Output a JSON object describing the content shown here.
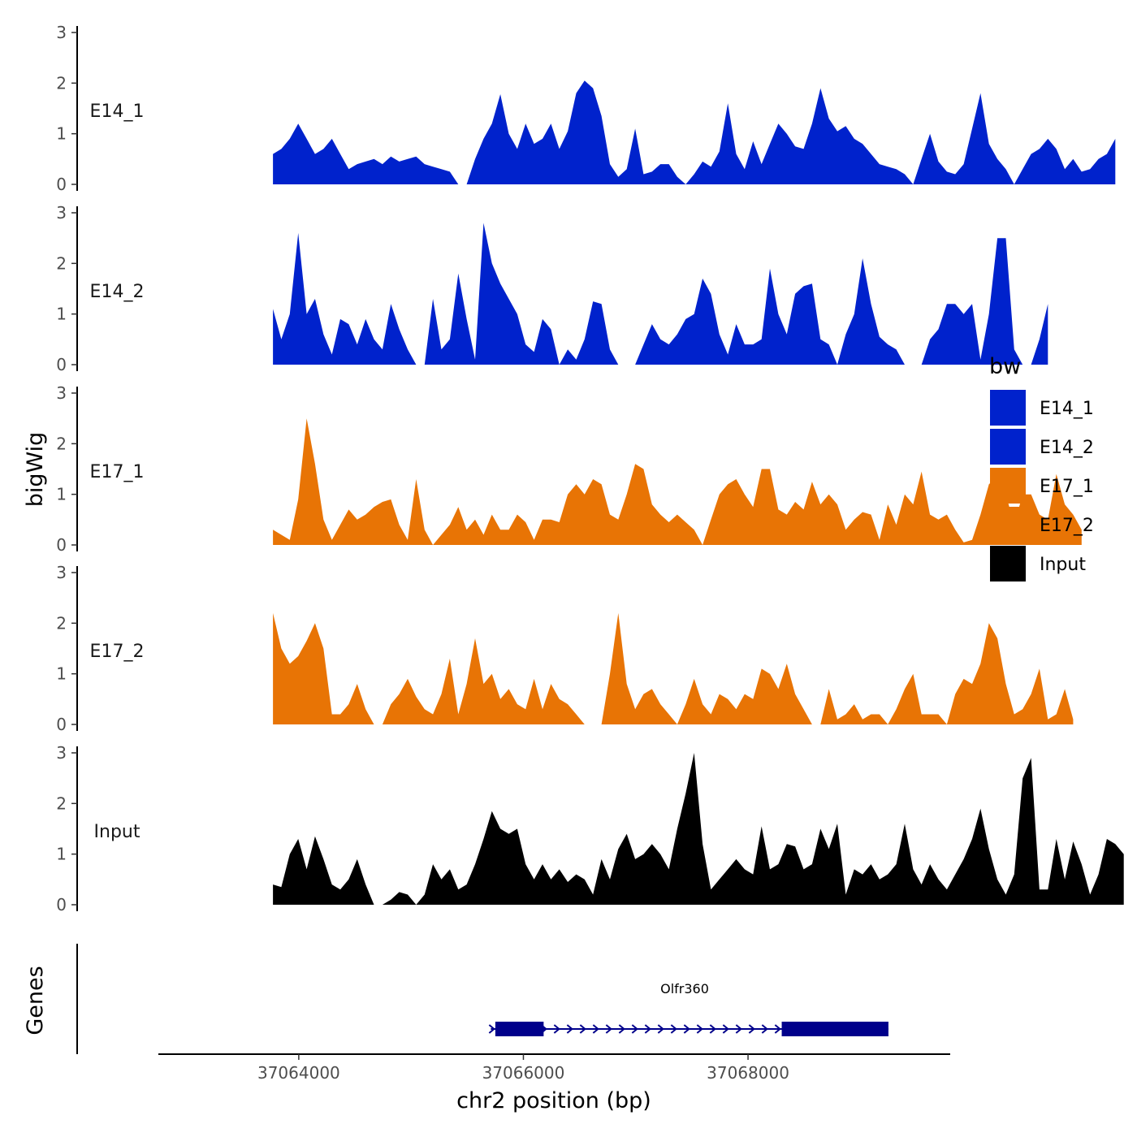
{
  "chart_data": {
    "type": "area",
    "ylabel": "bigWig",
    "genes_label": "Genes",
    "xlabel": "chr2 position (bp)",
    "xlim": [
      37062750,
      37069800
    ],
    "ylim": [
      0,
      3
    ],
    "yticks": [
      "0",
      "1",
      "2",
      "3"
    ],
    "xticks": [
      {
        "value": 37064000,
        "label": "37064000"
      },
      {
        "value": 37066000,
        "label": "37066000"
      },
      {
        "value": 37068000,
        "label": "37068000"
      }
    ],
    "legend": {
      "title": "bw",
      "position": "right",
      "entries": [
        "E14_1",
        "E14_2",
        "E17_1",
        "E17_2",
        "Input"
      ]
    },
    "colors": {
      "E14_1": "#0022cc",
      "E14_2": "#0022cc",
      "E17_1": "#e87405",
      "E17_2": "#e87405",
      "Input": "#000000",
      "gene": "#00008b"
    },
    "x_start": 37063770,
    "x_step": 75,
    "series": [
      {
        "name": "E14_1",
        "values": [
          0.6,
          0.7,
          0.9,
          1.2,
          0.9,
          0.6,
          0.7,
          0.9,
          0.6,
          0.3,
          0.4,
          0.45,
          0.5,
          0.4,
          0.55,
          0.45,
          0.5,
          0.55,
          0.4,
          0.35,
          0.3,
          0.25,
          0,
          0,
          0.5,
          0.9,
          1.2,
          1.78,
          1.0,
          0.7,
          1.2,
          0.8,
          0.9,
          1.2,
          0.7,
          1.05,
          1.8,
          2.05,
          1.9,
          1.35,
          0.4,
          0.15,
          0.3,
          1.1,
          0.2,
          0.25,
          0.4,
          0.4,
          0.15,
          0,
          0.2,
          0.45,
          0.35,
          0.65,
          1.6,
          0.6,
          0.3,
          0.85,
          0.4,
          0.8,
          1.2,
          1.0,
          0.75,
          0.7,
          1.2,
          1.9,
          1.3,
          1.05,
          1.15,
          0.9,
          0.8,
          0.6,
          0.4,
          0.35,
          0.3,
          0.2,
          0,
          0.5,
          1.0,
          0.45,
          0.25,
          0.2,
          0.4,
          1.1,
          1.8,
          0.8,
          0.5,
          0.3,
          0,
          0.3,
          0.6,
          0.7,
          0.9,
          0.7,
          0.3,
          0.5,
          0.25,
          0.3,
          0.5,
          0.6,
          0.9
        ]
      },
      {
        "name": "E14_2",
        "values": [
          1.1,
          0.5,
          1.0,
          2.6,
          1.0,
          1.3,
          0.6,
          0.2,
          0.9,
          0.8,
          0.4,
          0.9,
          0.5,
          0.3,
          1.2,
          0.7,
          0.3,
          0,
          0,
          1.3,
          0.3,
          0.5,
          1.8,
          0.9,
          0.1,
          2.8,
          2.0,
          1.6,
          1.3,
          1.0,
          0.4,
          0.25,
          0.9,
          0.7,
          0,
          0.3,
          0.1,
          0.5,
          1.25,
          1.2,
          0.3,
          0,
          0,
          0,
          0.4,
          0.8,
          0.5,
          0.4,
          0.6,
          0.9,
          1.0,
          1.7,
          1.4,
          0.6,
          0.2,
          0.8,
          0.4,
          0.4,
          0.5,
          1.9,
          1.0,
          0.6,
          1.4,
          1.55,
          1.6,
          0.5,
          0.4,
          0.0,
          0.6,
          1.0,
          2.1,
          1.2,
          0.55,
          0.4,
          0.3,
          0,
          0,
          0,
          0.5,
          0.7,
          1.2,
          1.2,
          1.0,
          1.2,
          0.1,
          1.0,
          2.5,
          2.5,
          0.3,
          0,
          0,
          0.5,
          1.2
        ]
      },
      {
        "name": "E17_1",
        "values": [
          0.3,
          0.2,
          0.1,
          0.9,
          2.5,
          1.6,
          0.5,
          0.1,
          0.4,
          0.7,
          0.5,
          0.6,
          0.75,
          0.85,
          0.9,
          0.4,
          0.1,
          1.3,
          0.3,
          0,
          0.2,
          0.4,
          0.75,
          0.3,
          0.5,
          0.2,
          0.6,
          0.3,
          0.3,
          0.6,
          0.45,
          0.1,
          0.5,
          0.5,
          0.45,
          1.0,
          1.2,
          1.0,
          1.3,
          1.2,
          0.6,
          0.5,
          1.0,
          1.6,
          1.5,
          0.8,
          0.6,
          0.45,
          0.6,
          0.45,
          0.3,
          0,
          0.5,
          1.0,
          1.2,
          1.3,
          1.0,
          0.75,
          1.5,
          1.5,
          0.7,
          0.6,
          0.85,
          0.7,
          1.25,
          0.8,
          1.0,
          0.8,
          0.3,
          0.5,
          0.65,
          0.6,
          0.1,
          0.8,
          0.4,
          1.0,
          0.8,
          1.45,
          0.6,
          0.5,
          0.6,
          0.3,
          0.05,
          0.1,
          0.6,
          1.2,
          1.35,
          1.0,
          0.4,
          1.0,
          1.0,
          0.6,
          0.5,
          1.4,
          0.8,
          0.6,
          0.3
        ]
      },
      {
        "name": "E17_2",
        "values": [
          2.2,
          1.5,
          1.2,
          1.35,
          1.65,
          2.0,
          1.5,
          0.2,
          0.2,
          0.4,
          0.8,
          0.3,
          0,
          0,
          0.4,
          0.6,
          0.9,
          0.55,
          0.3,
          0.2,
          0.6,
          1.3,
          0.2,
          0.8,
          1.7,
          0.8,
          1.0,
          0.5,
          0.7,
          0.4,
          0.3,
          0.9,
          0.3,
          0.8,
          0.5,
          0.4,
          0.2,
          0,
          0,
          0,
          1.0,
          2.2,
          0.8,
          0.3,
          0.6,
          0.7,
          0.4,
          0.2,
          0,
          0.4,
          0.9,
          0.4,
          0.2,
          0.6,
          0.5,
          0.3,
          0.6,
          0.5,
          1.1,
          1.0,
          0.7,
          1.2,
          0.6,
          0.3,
          0,
          0,
          0.7,
          0.1,
          0.2,
          0.4,
          0.1,
          0.2,
          0.2,
          0,
          0.3,
          0.7,
          1.0,
          0.2,
          0.2,
          0.2,
          0,
          0.6,
          0.9,
          0.8,
          1.2,
          2.0,
          1.7,
          0.8,
          0.2,
          0.3,
          0.6,
          1.1,
          0.1,
          0.2,
          0.7,
          0.1
        ]
      },
      {
        "name": "Input",
        "values": [
          0.4,
          0.35,
          1.0,
          1.3,
          0.7,
          1.35,
          0.9,
          0.4,
          0.3,
          0.5,
          0.9,
          0.4,
          0,
          0,
          0.1,
          0.25,
          0.2,
          0,
          0.2,
          0.8,
          0.5,
          0.7,
          0.3,
          0.4,
          0.8,
          1.3,
          1.85,
          1.5,
          1.4,
          1.5,
          0.8,
          0.5,
          0.8,
          0.5,
          0.7,
          0.45,
          0.6,
          0.5,
          0.2,
          0.9,
          0.5,
          1.1,
          1.4,
          0.9,
          1.0,
          1.2,
          1.0,
          0.7,
          1.5,
          2.2,
          3.0,
          1.2,
          0.3,
          0.5,
          0.7,
          0.9,
          0.7,
          0.6,
          1.55,
          0.7,
          0.8,
          1.2,
          1.15,
          0.7,
          0.8,
          1.5,
          1.1,
          1.6,
          0.2,
          0.7,
          0.6,
          0.8,
          0.5,
          0.6,
          0.8,
          1.6,
          0.7,
          0.4,
          0.8,
          0.5,
          0.3,
          0.6,
          0.9,
          1.3,
          1.9,
          1.1,
          0.5,
          0.2,
          0.6,
          2.5,
          2.9,
          0.3,
          0.3,
          1.3,
          0.5,
          1.25,
          0.8,
          0.2,
          0.6,
          1.3,
          1.2,
          1.0
        ]
      }
    ],
    "gene": {
      "name": "Olfr360",
      "start": 37065710,
      "end": 37069250,
      "exons": [
        [
          37065750,
          37066180
        ],
        [
          37068300,
          37069250
        ]
      ],
      "strand": "+"
    }
  }
}
